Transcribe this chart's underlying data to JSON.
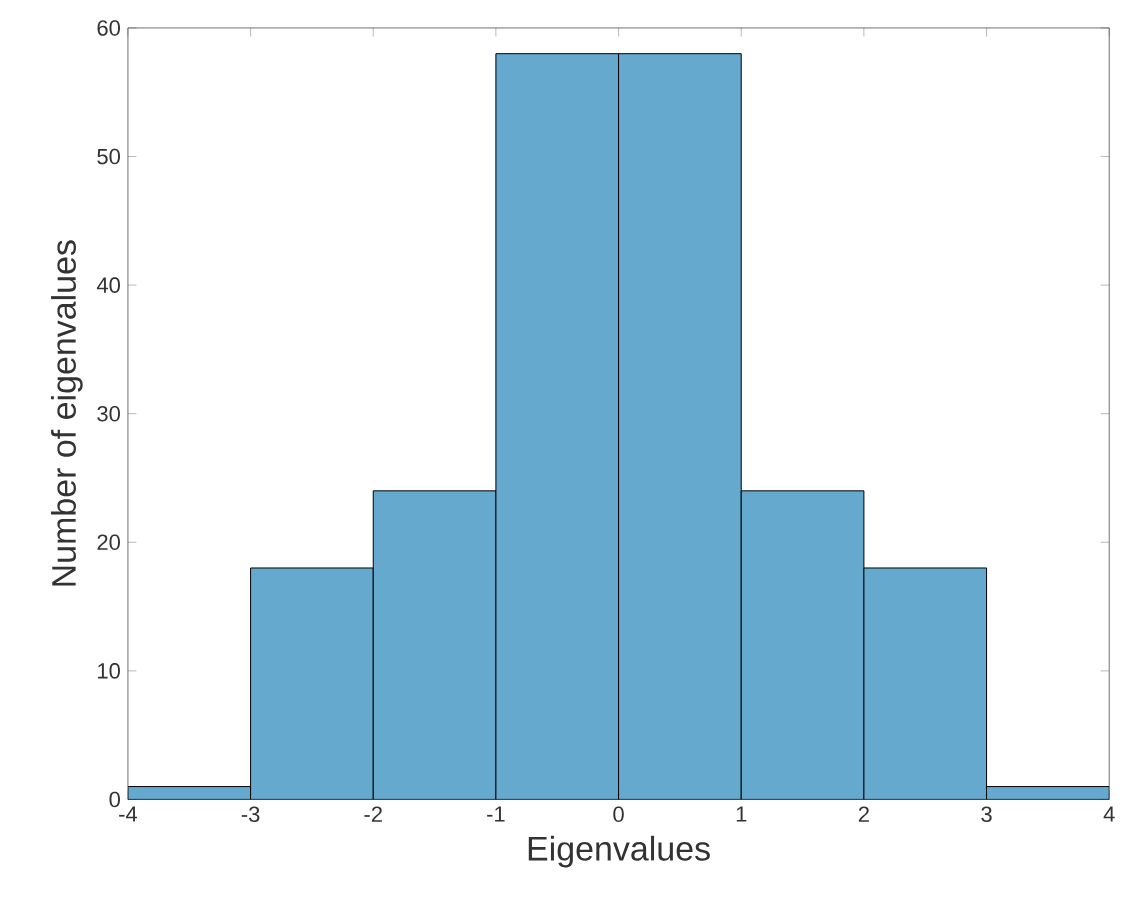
{
  "chart_data": {
    "type": "histogram",
    "xlabel": "Eigenvalues",
    "ylabel": "Number of eigenvalues",
    "bins": [
      -4,
      -3,
      -2,
      -1,
      0,
      1,
      2,
      3,
      4
    ],
    "values": [
      1,
      18,
      24,
      58,
      58,
      24,
      18,
      1
    ],
    "color": "#66a9cf",
    "xlim": [
      -4,
      4
    ],
    "ylim": [
      0,
      60
    ],
    "xticks": [
      -4,
      -3,
      -2,
      -1,
      0,
      1,
      2,
      3,
      4
    ],
    "yticks": [
      0,
      10,
      20,
      30,
      40,
      50,
      60
    ]
  }
}
